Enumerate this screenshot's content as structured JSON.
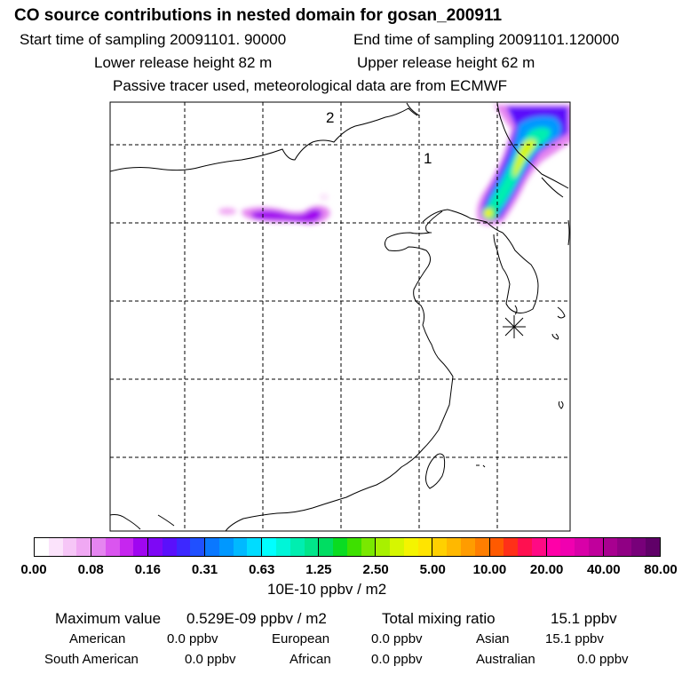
{
  "header": {
    "title": "CO  source contributions in nested domain for gosan_200911",
    "start_label": "Start time of sampling 20091101. 90000",
    "end_label": "End time of sampling 20091101.120000",
    "lower_label": "Lower release height   82 m",
    "upper_label": "Upper release height   62 m",
    "note": "Passive tracer used, meteorological data are from ECMWF"
  },
  "map": {
    "trajectory_labels": [
      "2",
      "1"
    ],
    "receptor": "station-marker"
  },
  "colorbar": {
    "tick_labels": [
      "0.00",
      "0.08",
      "0.16",
      "0.31",
      "0.63",
      "1.25",
      "2.50",
      "5.00",
      "10.00",
      "20.00",
      "40.00",
      "80.00"
    ],
    "unit": "10E-10 ppbv / m2",
    "colors": [
      "#ffffff",
      "#fbe3fb",
      "#f6c6f7",
      "#f0a8f3",
      "#e585f0",
      "#da55ef",
      "#c626ef",
      "#a006f0",
      "#7e08f5",
      "#5a10fb",
      "#3d28ff",
      "#2050ff",
      "#0a78ff",
      "#0098ff",
      "#00b9ff",
      "#00dcff",
      "#00ffff",
      "#00f5d8",
      "#00eeb0",
      "#00e68a",
      "#00dd62",
      "#0adc22",
      "#3ee000",
      "#7ae800",
      "#a8f000",
      "#d6f600",
      "#f4f400",
      "#ffe400",
      "#ffd000",
      "#ffb800",
      "#ff9c00",
      "#ff7e00",
      "#ff5a00",
      "#ff3018",
      "#ff1050",
      "#ff0a84",
      "#ff00a8",
      "#f000b0",
      "#d800a8",
      "#c0009c",
      "#a80090",
      "#900084",
      "#78007a",
      "#600068"
    ]
  },
  "summary": {
    "max_label": "Maximum value",
    "max_value": "0.529E-09 ppbv / m2",
    "total_label": "Total mixing ratio",
    "total_value": "15.1 ppbv",
    "regions": [
      {
        "name": "American",
        "value": "0.0 ppbv"
      },
      {
        "name": "European",
        "value": "0.0 ppbv"
      },
      {
        "name": "Asian",
        "value": "15.1 ppbv"
      },
      {
        "name": "South American",
        "value": "0.0 ppbv"
      },
      {
        "name": "African",
        "value": "0.0 ppbv"
      },
      {
        "name": "Australian",
        "value": "0.0 ppbv"
      }
    ]
  }
}
